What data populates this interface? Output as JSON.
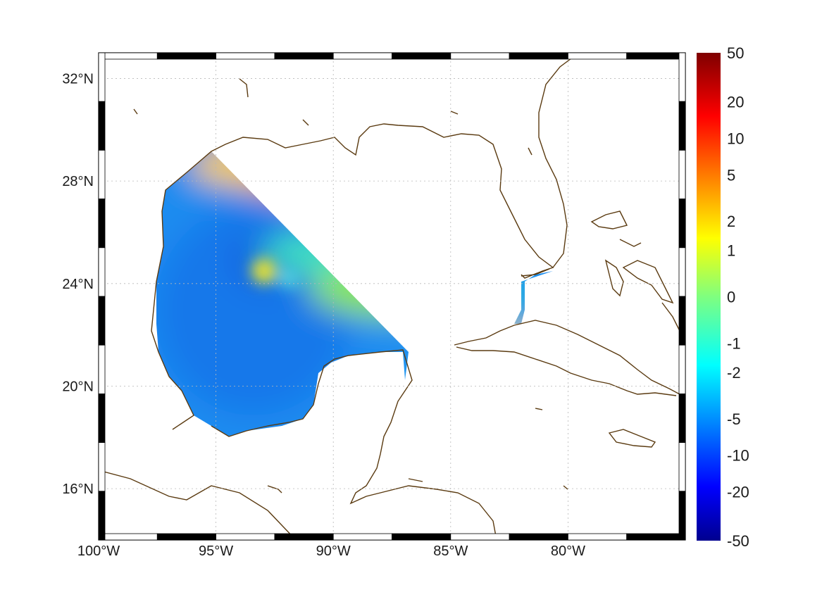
{
  "map": {
    "lon_range": [
      -100,
      -75
    ],
    "lat_range": [
      14,
      33
    ],
    "lon_ticks": [
      {
        "value": -100,
        "label": "100°W"
      },
      {
        "value": -95,
        "label": "95°W"
      },
      {
        "value": -90,
        "label": "90°W"
      },
      {
        "value": -85,
        "label": "85°W"
      },
      {
        "value": -80,
        "label": "80°W"
      }
    ],
    "lat_ticks": [
      {
        "value": 32,
        "label": "32°N"
      },
      {
        "value": 28,
        "label": "28°N"
      },
      {
        "value": 24,
        "label": "24°N"
      },
      {
        "value": 20,
        "label": "20°N"
      },
      {
        "value": 16,
        "label": "16°N"
      }
    ],
    "grid": true,
    "coastline_color": "#5a3a10",
    "colormap": "jet"
  },
  "colorbar": {
    "labels": [
      "50",
      "20",
      "10",
      "5",
      "2",
      "1",
      "0",
      "-1",
      "-2",
      "-5",
      "-10",
      "-20",
      "-50"
    ]
  }
}
